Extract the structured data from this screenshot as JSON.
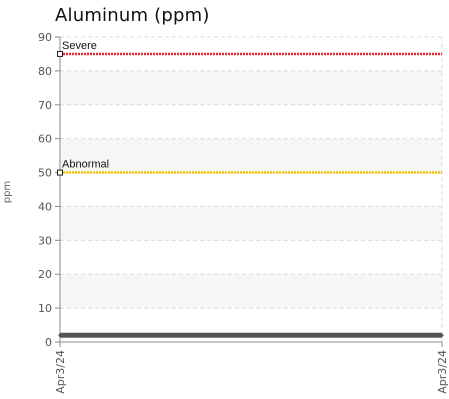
{
  "chart_data": {
    "type": "line",
    "title": "Aluminum (ppm)",
    "ylabel": "ppm",
    "xlabel": "",
    "ylim": [
      0,
      90
    ],
    "yticks": [
      0,
      10,
      20,
      30,
      40,
      50,
      60,
      70,
      80,
      90
    ],
    "x_categories": [
      "Apr3/24",
      "Apr3/24"
    ],
    "grid": true,
    "series": [
      {
        "values": [
          2,
          2
        ],
        "color": "#555555"
      }
    ],
    "thresholds": [
      {
        "name": "Severe",
        "value": 85,
        "color": "#e8262d"
      },
      {
        "name": "Abnormal",
        "value": 50,
        "color": "#f2c200"
      }
    ]
  }
}
